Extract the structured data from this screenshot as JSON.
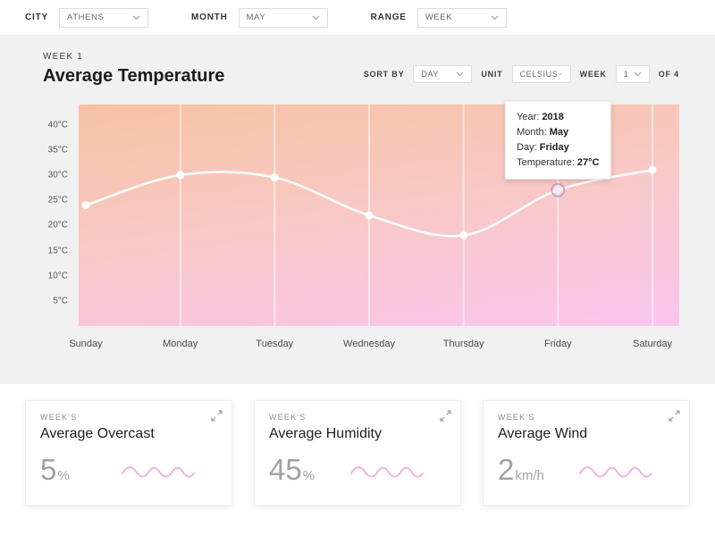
{
  "filters": {
    "city": {
      "label": "CITY",
      "value": "ATHENS"
    },
    "month": {
      "label": "MONTH",
      "value": "MAY"
    },
    "range": {
      "label": "RANGE",
      "value": "WEEK"
    }
  },
  "panel": {
    "week_label": "WEEK 1",
    "title": "Average Temperature",
    "sort_by": {
      "label": "SORT BY",
      "value": "DAY"
    },
    "unit": {
      "label": "UNIT",
      "value": "CELSIUS"
    },
    "week": {
      "label": "WEEK",
      "value": "1",
      "suffix": "OF 4"
    }
  },
  "chart_data": {
    "type": "line",
    "title": "Average Temperature",
    "categories": [
      "Sunday",
      "Monday",
      "Tuesday",
      "Wednesday",
      "Thursday",
      "Friday",
      "Saturday"
    ],
    "values": [
      24,
      30,
      29.5,
      22,
      18,
      27,
      31
    ],
    "value_unit": "°C",
    "ylim": [
      0,
      44
    ],
    "y_ticks": [
      {
        "v": 40,
        "label": "40°C"
      },
      {
        "v": 35,
        "label": "35°C"
      },
      {
        "v": 30,
        "label": "30°C"
      },
      {
        "v": 25,
        "label": "25°C"
      },
      {
        "v": 20,
        "label": "20°C"
      },
      {
        "v": 15,
        "label": "15°C"
      },
      {
        "v": 10,
        "label": "10°C"
      },
      {
        "v": 5,
        "label": "5°C"
      }
    ],
    "grid": true,
    "highlight_index": 5,
    "tooltip": {
      "rows": [
        {
          "label": "Year:",
          "value": "2018"
        },
        {
          "label": "Month:",
          "value": "May"
        },
        {
          "label": "Day:",
          "value": "Friday"
        },
        {
          "label": "Temperature:",
          "value": "27°C"
        }
      ]
    }
  },
  "cards": [
    {
      "kicker": "WEEK'S",
      "title": "Average Overcast",
      "value": "5",
      "unit": "%"
    },
    {
      "kicker": "WEEK'S",
      "title": "Average Humidity",
      "value": "45",
      "unit": "%"
    },
    {
      "kicker": "WEEK'S",
      "title": "Average Wind",
      "value": "2",
      "unit": "km/h"
    }
  ],
  "colors": {
    "gradient_top": "#f7c2a3",
    "gradient_mid": "#f8c9c4",
    "gradient_bottom": "#fac5ee",
    "line": "#ffffff",
    "accent_pink": "#efb3dc",
    "highlight_ring": "#a88fb8"
  }
}
